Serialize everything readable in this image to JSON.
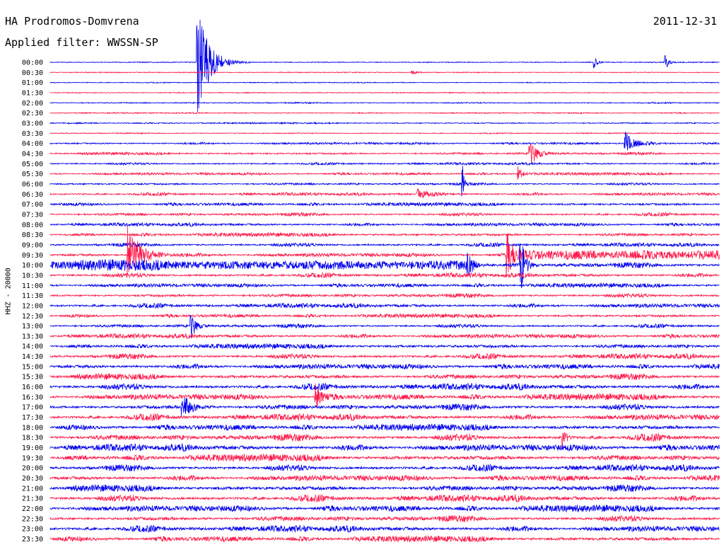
{
  "header": {
    "station": "HA Prodromos-Domvrena",
    "filter": "Applied filter: WWSSN-SP",
    "date": "2011-12-31",
    "channel": "HHZ - 20000"
  },
  "colors": {
    "even_row": "#0000ee",
    "odd_row": "#ff1a4a",
    "background": "#ffffff",
    "text": "#000000"
  },
  "chart_data": {
    "type": "line",
    "subtype": "helicorder",
    "row_labels": [
      "00:00",
      "00:30",
      "01:00",
      "01:30",
      "02:00",
      "02:30",
      "03:00",
      "03:30",
      "04:00",
      "04:30",
      "05:00",
      "05:30",
      "06:00",
      "06:30",
      "07:00",
      "07:30",
      "08:00",
      "08:30",
      "09:00",
      "09:30",
      "10:00",
      "10:30",
      "11:00",
      "11:30",
      "12:00",
      "12:30",
      "13:00",
      "13:30",
      "14:00",
      "14:30",
      "15:00",
      "15:30",
      "16:00",
      "16:30",
      "17:00",
      "17:30",
      "18:00",
      "18:30",
      "19:00",
      "19:30",
      "20:00",
      "20:30",
      "21:00",
      "21:30",
      "22:00",
      "22:30",
      "23:00",
      "23:30"
    ],
    "minutes_per_row": 30,
    "noise_level": [
      0.06,
      0.05,
      0.05,
      0.05,
      0.1,
      0.1,
      0.12,
      0.08,
      0.25,
      0.3,
      0.25,
      0.3,
      0.3,
      0.35,
      0.4,
      0.4,
      0.4,
      0.45,
      0.45,
      0.5,
      0.7,
      0.55,
      0.5,
      0.5,
      0.55,
      0.45,
      0.45,
      0.55,
      0.6,
      0.65,
      0.7,
      0.75,
      0.8,
      0.8,
      0.8,
      0.8,
      0.8,
      0.9,
      0.9,
      0.9,
      0.8,
      0.8,
      0.85,
      0.85,
      0.85,
      0.8,
      0.8,
      0.75
    ],
    "events": [
      {
        "row": 0,
        "minute": 6.6,
        "amplitude": 80,
        "duration_min": 0.8
      },
      {
        "row": 0,
        "minute": 24.4,
        "amplitude": 8,
        "duration_min": 0.2
      },
      {
        "row": 0,
        "minute": 27.6,
        "amplitude": 10,
        "duration_min": 0.2
      },
      {
        "row": 1,
        "minute": 16.2,
        "amplitude": 3,
        "duration_min": 0.3
      },
      {
        "row": 8,
        "minute": 25.8,
        "amplitude": 16,
        "duration_min": 0.6
      },
      {
        "row": 9,
        "minute": 21.5,
        "amplitude": 18,
        "duration_min": 0.6
      },
      {
        "row": 11,
        "minute": 21.0,
        "amplitude": 10,
        "duration_min": 0.3
      },
      {
        "row": 12,
        "minute": 18.5,
        "amplitude": 25,
        "duration_min": 0.1
      },
      {
        "row": 13,
        "minute": 16.5,
        "amplitude": 8,
        "duration_min": 1.0
      },
      {
        "row": 19,
        "minute": 3.5,
        "amplitude": 40,
        "duration_min": 0.9
      },
      {
        "row": 19,
        "minute": 20.5,
        "amplitude": 30,
        "duration_min": 0.5
      },
      {
        "row": 20,
        "minute": 18.7,
        "amplitude": 25,
        "duration_min": 0.3
      },
      {
        "row": 20,
        "minute": 21.1,
        "amplitude": 40,
        "duration_min": 0.3
      },
      {
        "row": 26,
        "minute": 6.3,
        "amplitude": 18,
        "duration_min": 0.4
      },
      {
        "row": 33,
        "minute": 11.9,
        "amplitude": 18,
        "duration_min": 0.4
      },
      {
        "row": 34,
        "minute": 5.9,
        "amplitude": 22,
        "duration_min": 0.6
      },
      {
        "row": 37,
        "minute": 23.0,
        "amplitude": 18,
        "duration_min": 0.2
      }
    ],
    "sustained_bursts": [
      {
        "row": 19,
        "start_minute": 21.0,
        "end_minute": 30.0,
        "amplitude": 4
      },
      {
        "row": 20,
        "start_minute": 0.0,
        "end_minute": 18.8,
        "amplitude": 4
      }
    ]
  }
}
